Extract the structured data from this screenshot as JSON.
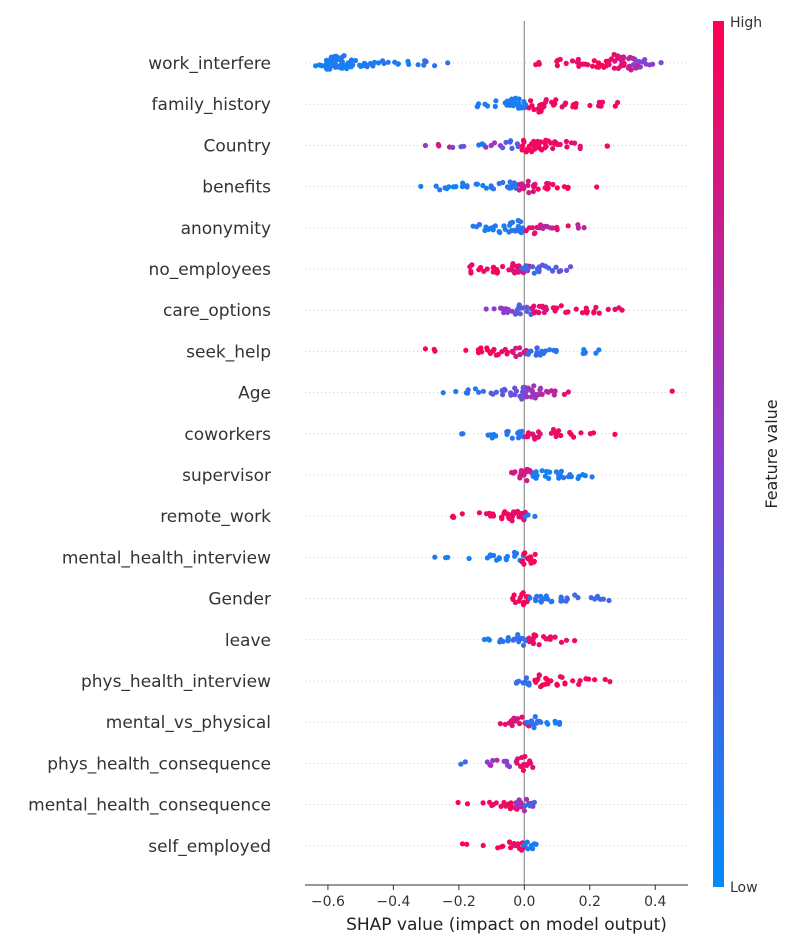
{
  "chart_data": {
    "type": "scatter",
    "subtype": "shap-beeswarm",
    "title": "",
    "xlabel": "SHAP value (impact on model output)",
    "ylabel": "",
    "xlim": [
      -0.67,
      0.5
    ],
    "xticks": [
      -0.6,
      -0.4,
      -0.2,
      0.0,
      0.2,
      0.4
    ],
    "xtick_labels": [
      "−0.6",
      "−0.4",
      "−0.2",
      "0.0",
      "0.2",
      "0.4"
    ],
    "zero_line": 0.0,
    "grid": false,
    "colorbar": {
      "title": "Feature value",
      "high_label": "High",
      "low_label": "Low",
      "high_color": "#ff0052",
      "mid_color": "#8a3fd0",
      "low_color": "#008bfb"
    },
    "features": [
      {
        "name": "work_interfere",
        "clusters": [
          {
            "x": -0.61,
            "c": 0.05,
            "n": 10
          },
          {
            "x": -0.58,
            "c": 0.1,
            "n": 22
          },
          {
            "x": -0.55,
            "c": 0.1,
            "n": 14
          },
          {
            "x": -0.51,
            "c": 0.1,
            "n": 8
          },
          {
            "x": -0.47,
            "c": 0.1,
            "n": 6
          },
          {
            "x": -0.43,
            "c": 0.15,
            "n": 3
          },
          {
            "x": -0.37,
            "c": 0.1,
            "n": 3
          },
          {
            "x": -0.33,
            "c": 0.1,
            "n": 5
          },
          {
            "x": -0.28,
            "c": 0.2,
            "n": 3
          },
          {
            "x": -0.22,
            "c": 0.1,
            "n": 1
          },
          {
            "x": 0.05,
            "c": 0.95,
            "n": 3
          },
          {
            "x": 0.12,
            "c": 0.95,
            "n": 6
          },
          {
            "x": 0.17,
            "c": 0.9,
            "n": 7
          },
          {
            "x": 0.23,
            "c": 0.95,
            "n": 10
          },
          {
            "x": 0.28,
            "c": 0.9,
            "n": 20
          },
          {
            "x": 0.32,
            "c": 0.75,
            "n": 16
          },
          {
            "x": 0.36,
            "c": 0.5,
            "n": 8
          },
          {
            "x": 0.41,
            "c": 0.5,
            "n": 3
          }
        ]
      },
      {
        "name": "family_history",
        "clusters": [
          {
            "x": -0.13,
            "c": 0.1,
            "n": 5
          },
          {
            "x": -0.07,
            "c": 0.1,
            "n": 7
          },
          {
            "x": -0.02,
            "c": 0.1,
            "n": 16
          },
          {
            "x": 0.04,
            "c": 0.95,
            "n": 18
          },
          {
            "x": 0.1,
            "c": 0.95,
            "n": 8
          },
          {
            "x": 0.15,
            "c": 0.95,
            "n": 5
          },
          {
            "x": 0.22,
            "c": 0.95,
            "n": 4
          },
          {
            "x": 0.26,
            "c": 0.95,
            "n": 3
          }
        ]
      },
      {
        "name": "Country",
        "clusters": [
          {
            "x": -0.29,
            "c": 0.5,
            "n": 1
          },
          {
            "x": -0.24,
            "c": 0.8,
            "n": 3
          },
          {
            "x": -0.2,
            "c": 0.4,
            "n": 3
          },
          {
            "x": -0.15,
            "c": 0.1,
            "n": 3
          },
          {
            "x": -0.1,
            "c": 0.6,
            "n": 4
          },
          {
            "x": -0.04,
            "c": 0.3,
            "n": 7
          },
          {
            "x": 0.02,
            "c": 0.95,
            "n": 18
          },
          {
            "x": 0.07,
            "c": 0.95,
            "n": 12
          },
          {
            "x": 0.12,
            "c": 0.9,
            "n": 7
          },
          {
            "x": 0.17,
            "c": 0.9,
            "n": 3
          },
          {
            "x": 0.23,
            "c": 0.95,
            "n": 2
          }
        ]
      },
      {
        "name": "benefits",
        "clusters": [
          {
            "x": -0.31,
            "c": 0.1,
            "n": 1
          },
          {
            "x": -0.25,
            "c": 0.1,
            "n": 5
          },
          {
            "x": -0.19,
            "c": 0.1,
            "n": 6
          },
          {
            "x": -0.12,
            "c": 0.1,
            "n": 7
          },
          {
            "x": -0.05,
            "c": 0.15,
            "n": 10
          },
          {
            "x": 0.01,
            "c": 0.8,
            "n": 14
          },
          {
            "x": 0.05,
            "c": 0.95,
            "n": 8
          },
          {
            "x": 0.11,
            "c": 0.95,
            "n": 5
          },
          {
            "x": 0.21,
            "c": 0.95,
            "n": 1
          }
        ]
      },
      {
        "name": "anonymity",
        "clusters": [
          {
            "x": -0.13,
            "c": 0.1,
            "n": 8
          },
          {
            "x": -0.07,
            "c": 0.1,
            "n": 8
          },
          {
            "x": -0.02,
            "c": 0.15,
            "n": 16
          },
          {
            "x": 0.03,
            "c": 0.9,
            "n": 10
          },
          {
            "x": 0.07,
            "c": 0.7,
            "n": 6
          },
          {
            "x": 0.12,
            "c": 0.9,
            "n": 3
          },
          {
            "x": 0.16,
            "c": 0.7,
            "n": 3
          }
        ]
      },
      {
        "name": "no_employees",
        "clusters": [
          {
            "x": -0.16,
            "c": 0.95,
            "n": 6
          },
          {
            "x": -0.1,
            "c": 0.95,
            "n": 9
          },
          {
            "x": -0.04,
            "c": 0.9,
            "n": 10
          },
          {
            "x": -0.01,
            "c": 0.85,
            "n": 10
          },
          {
            "x": 0.02,
            "c": 0.25,
            "n": 10
          },
          {
            "x": 0.07,
            "c": 0.3,
            "n": 8
          },
          {
            "x": 0.12,
            "c": 0.4,
            "n": 4
          }
        ]
      },
      {
        "name": "care_options",
        "clusters": [
          {
            "x": -0.09,
            "c": 0.5,
            "n": 4
          },
          {
            "x": -0.04,
            "c": 0.5,
            "n": 6
          },
          {
            "x": 0.0,
            "c": 0.3,
            "n": 14
          },
          {
            "x": 0.05,
            "c": 0.9,
            "n": 12
          },
          {
            "x": 0.11,
            "c": 0.95,
            "n": 9
          },
          {
            "x": 0.17,
            "c": 0.95,
            "n": 6
          },
          {
            "x": 0.23,
            "c": 0.95,
            "n": 5
          },
          {
            "x": 0.29,
            "c": 0.95,
            "n": 3
          }
        ]
      },
      {
        "name": "seek_help",
        "clusters": [
          {
            "x": -0.29,
            "c": 0.95,
            "n": 3
          },
          {
            "x": -0.19,
            "c": 0.95,
            "n": 1
          },
          {
            "x": -0.13,
            "c": 0.95,
            "n": 8
          },
          {
            "x": -0.07,
            "c": 0.95,
            "n": 9
          },
          {
            "x": -0.02,
            "c": 0.8,
            "n": 10
          },
          {
            "x": 0.03,
            "c": 0.2,
            "n": 10
          },
          {
            "x": 0.08,
            "c": 0.15,
            "n": 7
          },
          {
            "x": 0.16,
            "c": 0.1,
            "n": 4
          },
          {
            "x": 0.21,
            "c": 0.1,
            "n": 2
          }
        ]
      },
      {
        "name": "Age",
        "clusters": [
          {
            "x": -0.27,
            "c": 0.1,
            "n": 1
          },
          {
            "x": -0.21,
            "c": 0.1,
            "n": 1
          },
          {
            "x": -0.15,
            "c": 0.15,
            "n": 6
          },
          {
            "x": -0.08,
            "c": 0.3,
            "n": 8
          },
          {
            "x": -0.02,
            "c": 0.4,
            "n": 16
          },
          {
            "x": 0.03,
            "c": 0.6,
            "n": 14
          },
          {
            "x": 0.08,
            "c": 0.7,
            "n": 6
          },
          {
            "x": 0.14,
            "c": 0.9,
            "n": 2
          },
          {
            "x": 0.45,
            "c": 0.95,
            "n": 1
          }
        ]
      },
      {
        "name": "coworkers",
        "clusters": [
          {
            "x": -0.21,
            "c": 0.1,
            "n": 2
          },
          {
            "x": -0.1,
            "c": 0.1,
            "n": 6
          },
          {
            "x": -0.03,
            "c": 0.15,
            "n": 10
          },
          {
            "x": 0.03,
            "c": 0.9,
            "n": 10
          },
          {
            "x": 0.09,
            "c": 0.95,
            "n": 7
          },
          {
            "x": 0.15,
            "c": 0.95,
            "n": 4
          },
          {
            "x": 0.19,
            "c": 0.95,
            "n": 2
          },
          {
            "x": 0.26,
            "c": 0.95,
            "n": 1
          }
        ]
      },
      {
        "name": "supervisor",
        "clusters": [
          {
            "x": -0.02,
            "c": 0.85,
            "n": 8
          },
          {
            "x": 0.01,
            "c": 0.8,
            "n": 12
          },
          {
            "x": 0.05,
            "c": 0.1,
            "n": 10
          },
          {
            "x": 0.1,
            "c": 0.1,
            "n": 7
          },
          {
            "x": 0.16,
            "c": 0.1,
            "n": 5
          },
          {
            "x": 0.19,
            "c": 0.1,
            "n": 3
          }
        ]
      },
      {
        "name": "remote_work",
        "clusters": [
          {
            "x": -0.2,
            "c": 0.95,
            "n": 4
          },
          {
            "x": -0.12,
            "c": 0.95,
            "n": 8
          },
          {
            "x": -0.05,
            "c": 0.95,
            "n": 10
          },
          {
            "x": -0.01,
            "c": 0.9,
            "n": 14
          },
          {
            "x": 0.02,
            "c": 0.1,
            "n": 3
          }
        ]
      },
      {
        "name": "mental_health_interview",
        "clusters": [
          {
            "x": -0.26,
            "c": 0.1,
            "n": 3
          },
          {
            "x": -0.17,
            "c": 0.1,
            "n": 1
          },
          {
            "x": -0.14,
            "c": 0.1,
            "n": 1
          },
          {
            "x": -0.08,
            "c": 0.1,
            "n": 6
          },
          {
            "x": -0.03,
            "c": 0.1,
            "n": 8
          },
          {
            "x": 0.01,
            "c": 0.95,
            "n": 16
          }
        ]
      },
      {
        "name": "Gender",
        "clusters": [
          {
            "x": -0.01,
            "c": 0.95,
            "n": 14
          },
          {
            "x": 0.04,
            "c": 0.15,
            "n": 10
          },
          {
            "x": 0.09,
            "c": 0.15,
            "n": 7
          },
          {
            "x": 0.15,
            "c": 0.2,
            "n": 5
          },
          {
            "x": 0.2,
            "c": 0.25,
            "n": 4
          },
          {
            "x": 0.25,
            "c": 0.3,
            "n": 3
          }
        ]
      },
      {
        "name": "leave",
        "clusters": [
          {
            "x": -0.11,
            "c": 0.1,
            "n": 3
          },
          {
            "x": -0.05,
            "c": 0.15,
            "n": 6
          },
          {
            "x": -0.01,
            "c": 0.2,
            "n": 12
          },
          {
            "x": 0.04,
            "c": 0.9,
            "n": 12
          },
          {
            "x": 0.09,
            "c": 0.95,
            "n": 5
          },
          {
            "x": 0.15,
            "c": 0.95,
            "n": 2
          }
        ]
      },
      {
        "name": "phys_health_interview",
        "clusters": [
          {
            "x": 0.0,
            "c": 0.2,
            "n": 10
          },
          {
            "x": 0.05,
            "c": 0.95,
            "n": 12
          },
          {
            "x": 0.1,
            "c": 0.95,
            "n": 8
          },
          {
            "x": 0.17,
            "c": 0.95,
            "n": 5
          },
          {
            "x": 0.24,
            "c": 0.95,
            "n": 2
          },
          {
            "x": 0.27,
            "c": 0.95,
            "n": 1
          }
        ]
      },
      {
        "name": "mental_vs_physical",
        "clusters": [
          {
            "x": -0.05,
            "c": 0.9,
            "n": 5
          },
          {
            "x": -0.01,
            "c": 0.85,
            "n": 12
          },
          {
            "x": 0.03,
            "c": 0.15,
            "n": 10
          },
          {
            "x": 0.07,
            "c": 0.1,
            "n": 4
          },
          {
            "x": 0.12,
            "c": 0.1,
            "n": 3
          }
        ]
      },
      {
        "name": "phys_health_consequence",
        "clusters": [
          {
            "x": -0.19,
            "c": 0.2,
            "n": 2
          },
          {
            "x": -0.14,
            "c": 0.4,
            "n": 1
          },
          {
            "x": -0.09,
            "c": 0.6,
            "n": 4
          },
          {
            "x": -0.04,
            "c": 0.5,
            "n": 6
          },
          {
            "x": 0.0,
            "c": 0.9,
            "n": 14
          }
        ]
      },
      {
        "name": "mental_health_consequence",
        "clusters": [
          {
            "x": -0.19,
            "c": 0.95,
            "n": 2
          },
          {
            "x": -0.13,
            "c": 0.9,
            "n": 1
          },
          {
            "x": -0.08,
            "c": 0.95,
            "n": 6
          },
          {
            "x": -0.03,
            "c": 0.95,
            "n": 9
          },
          {
            "x": 0.0,
            "c": 0.6,
            "n": 12
          },
          {
            "x": 0.02,
            "c": 0.2,
            "n": 3
          }
        ]
      },
      {
        "name": "self_employed",
        "clusters": [
          {
            "x": -0.17,
            "c": 0.95,
            "n": 2
          },
          {
            "x": -0.12,
            "c": 0.95,
            "n": 1
          },
          {
            "x": -0.09,
            "c": 0.95,
            "n": 2
          },
          {
            "x": -0.04,
            "c": 0.95,
            "n": 7
          },
          {
            "x": -0.01,
            "c": 0.9,
            "n": 8
          },
          {
            "x": 0.01,
            "c": 0.1,
            "n": 10
          }
        ]
      }
    ]
  }
}
